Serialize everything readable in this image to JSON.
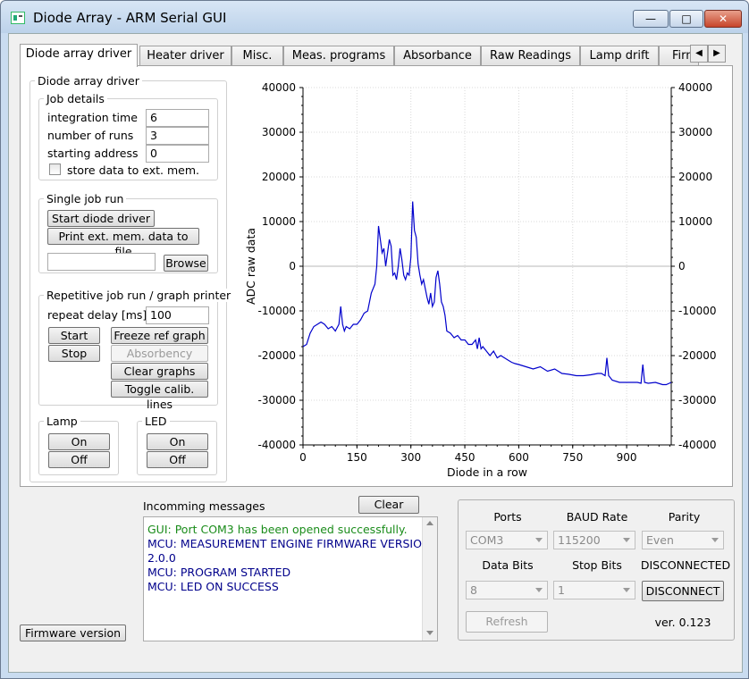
{
  "window": {
    "title": "Diode Array - ARM Serial GUI",
    "min_label": "—",
    "max_label": "□",
    "close_label": "✕"
  },
  "tabs": [
    "Diode array driver",
    "Heater driver",
    "Misc.",
    "Meas. programs",
    "Absorbance",
    "Raw Readings",
    "Lamp drift",
    "Firm"
  ],
  "tab_scroll": {
    "left": "◀",
    "right": "▶"
  },
  "driver": {
    "group_title": "Diode array driver",
    "job_details": {
      "title": "Job details",
      "integration_time_label": "integration time",
      "integration_time_value": "6",
      "runs_label": "number of runs",
      "runs_value": "3",
      "address_label": "starting address",
      "address_value": "0",
      "store_label": "store data to ext. mem."
    },
    "single_job": {
      "title": "Single job run",
      "start_label": "Start diode driver",
      "print_label": "Print ext. mem. data to file",
      "file_value": "",
      "browse_label": "Browse"
    },
    "repetitive": {
      "title": "Repetitive job run / graph printer",
      "delay_label": "repeat delay [ms]",
      "delay_value": "100",
      "start_label": "Start",
      "stop_label": "Stop",
      "freeze_label": "Freeze ref graph",
      "absorbency_label": "Absorbency",
      "clear_label": "Clear graphs",
      "toggle_label": "Toggle calib. lines"
    },
    "lamp": {
      "title": "Lamp",
      "on_label": "On",
      "off_label": "Off"
    },
    "led": {
      "title": "LED",
      "on_label": "On",
      "off_label": "Off"
    }
  },
  "chart_data": {
    "type": "line",
    "xlabel": "Diode in a row",
    "ylabel": "ADC raw data",
    "xlim": [
      0,
      1024
    ],
    "ylim": [
      -40000,
      40000
    ],
    "xticks": [
      0,
      150,
      300,
      450,
      600,
      750,
      900
    ],
    "yticks": [
      -40000,
      -30000,
      -20000,
      -10000,
      0,
      10000,
      20000,
      30000,
      40000
    ],
    "grid": true,
    "color": "#0000cc",
    "x": [
      0,
      10,
      20,
      30,
      40,
      50,
      60,
      70,
      80,
      90,
      100,
      105,
      110,
      115,
      120,
      130,
      140,
      150,
      160,
      170,
      180,
      190,
      200,
      205,
      210,
      215,
      220,
      225,
      230,
      235,
      240,
      245,
      250,
      255,
      260,
      265,
      270,
      275,
      280,
      285,
      290,
      295,
      300,
      305,
      310,
      315,
      320,
      325,
      330,
      335,
      340,
      345,
      350,
      355,
      360,
      365,
      370,
      375,
      380,
      385,
      390,
      395,
      400,
      410,
      420,
      430,
      440,
      450,
      460,
      470,
      480,
      485,
      490,
      495,
      500,
      510,
      520,
      530,
      540,
      550,
      560,
      570,
      580,
      590,
      600,
      620,
      640,
      660,
      680,
      700,
      720,
      740,
      760,
      780,
      800,
      820,
      830,
      840,
      845,
      850,
      860,
      880,
      900,
      920,
      930,
      940,
      945,
      950,
      960,
      980,
      1000,
      1010,
      1024
    ],
    "y": [
      -18000,
      -17500,
      -15000,
      -13500,
      -13000,
      -12500,
      -13000,
      -14000,
      -13500,
      -14500,
      -13000,
      -9000,
      -13000,
      -14500,
      -13500,
      -14000,
      -13000,
      -13000,
      -12000,
      -10500,
      -10000,
      -6000,
      -4000,
      0,
      9000,
      6000,
      3000,
      4000,
      0,
      3000,
      6000,
      4500,
      -2000,
      -1500,
      -3000,
      0,
      4000,
      1500,
      -2000,
      -3000,
      -1500,
      -2000,
      2000,
      14500,
      8000,
      6500,
      500,
      -2000,
      -4000,
      -3000,
      -5000,
      -7000,
      -8500,
      -6000,
      -9000,
      -8000,
      -2500,
      -1000,
      -4000,
      -8000,
      -9000,
      -11000,
      -14500,
      -15000,
      -16000,
      -15500,
      -16500,
      -16500,
      -17500,
      -17500,
      -16500,
      -18500,
      -16000,
      -18500,
      -18000,
      -19000,
      -20000,
      -19000,
      -20500,
      -20000,
      -20500,
      -21000,
      -21500,
      -21800,
      -22000,
      -22500,
      -23000,
      -22500,
      -23500,
      -23000,
      -24000,
      -24200,
      -24500,
      -24500,
      -24300,
      -24000,
      -24000,
      -24500,
      -20500,
      -24500,
      -25500,
      -26000,
      -26000,
      -26000,
      -26000,
      -26200,
      -22000,
      -26000,
      -26200,
      -26000,
      -26500,
      -26500,
      -26000
    ]
  },
  "messages": {
    "title": "Incomming messages",
    "clear_label": "Clear",
    "lines": [
      {
        "text": "GUI: Port COM3 has been opened successfully.",
        "color": "#1a8c1a"
      },
      {
        "text": "MCU: MEASUREMENT ENGINE FIRMWARE VERSION:",
        "color": "#00008b"
      },
      {
        "text": "2.0.0",
        "color": "#00008b"
      },
      {
        "text": "MCU: PROGRAM STARTED",
        "color": "#00008b"
      },
      {
        "text": "MCU: LED ON SUCCESS",
        "color": "#00008b"
      }
    ]
  },
  "serial": {
    "ports_label": "Ports",
    "baud_label": "BAUD Rate",
    "parity_label": "Parity",
    "port_value": "COM3",
    "baud_value": "115200",
    "parity_value": "Even",
    "databits_label": "Data Bits",
    "stopbits_label": "Stop Bits",
    "status": "DISCONNECTED",
    "databits_value": "8",
    "stopbits_value": "1",
    "disconnect_label": "DISCONNECT",
    "refresh_label": "Refresh",
    "version": "ver. 0.123"
  },
  "firmware_button": "Firmware version"
}
